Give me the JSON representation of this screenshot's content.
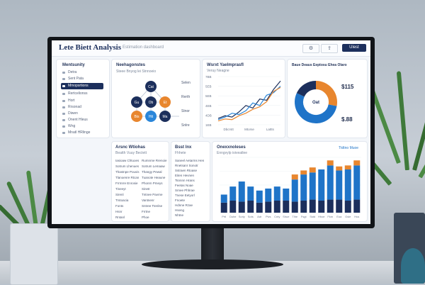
{
  "app": {
    "title": "Lete Biett Analysis",
    "subtitle": "Estimation dashboard"
  },
  "topbar": {
    "icon_buttons": [
      "⚙",
      "⇪"
    ],
    "action_label": "Ulest"
  },
  "sidebar": {
    "header": "Mentsunity",
    "items": [
      {
        "label": "Detra"
      },
      {
        "label": "Sent Pata"
      },
      {
        "label": "Mmopsrtions",
        "active": true
      },
      {
        "label": "Rertcelionss"
      },
      {
        "label": "Hort"
      },
      {
        "label": "Rrsonad"
      },
      {
        "label": "Diwen"
      },
      {
        "label": "Onent Hleus"
      },
      {
        "label": "Wng"
      },
      {
        "label": "Mnatl HRlinge"
      }
    ]
  },
  "network_card": {
    "title": "Neehagonstes",
    "subtitle": "Steee Bnyog lei Stnnoeio",
    "side_labels": [
      "Selen",
      "Rerth",
      "Stnor",
      "Snlre"
    ],
    "nodes": [
      {
        "label": "Cat",
        "color": "#1c2f5c"
      },
      {
        "label": "Gu",
        "color": "#1c2f5c"
      },
      {
        "label": "Ob",
        "color": "#1c2f5c"
      },
      {
        "label": "Et",
        "color": "#e8862e"
      },
      {
        "label": "Bis",
        "color": "#e8862e"
      },
      {
        "label": "Hit",
        "color": "#2a86d9"
      },
      {
        "label": "Ma",
        "color": "#1c2f5c"
      }
    ]
  },
  "line_card": {
    "title": "Wsrxt Yaelmprasfl",
    "subtitle": "Veruy Neagne",
    "y_ticks": [
      "7BB",
      "5EB",
      "5EB",
      "4EB",
      "4DB",
      "1EB"
    ],
    "x_labels": [
      "Dbcrstt",
      "Mtorse",
      "Lattts"
    ]
  },
  "donut_card": {
    "title": "Baue Deaus Eeptosu Ehea Olaro",
    "center_label": "Oat",
    "value_1": "$115",
    "value_2": "$.88",
    "slices": [
      {
        "name": "Orange",
        "value": 0.28,
        "color": "#e8862e"
      },
      {
        "name": "Blue",
        "value": 0.54,
        "color": "#1f74c8"
      },
      {
        "name": "Navy",
        "value": 0.18,
        "color": "#1c2f5c"
      }
    ]
  },
  "list_card": {
    "title": "Arsnc Wtiohas",
    "subtitle": "Beatth Vuuy Bectett",
    "col1": [
      "Iasioaw Chtuoes",
      "Sotrum Lhenues",
      "Thastnpe Pouvis",
      "Tlanoenre Rtcan",
      "Frrmrre Enrosie",
      "Tineeyt",
      "Sirenl",
      "Trstoacia",
      "Fonts",
      "Hsnr",
      "Rntanl"
    ],
    "col2": [
      "Rumnrne Rrenoie",
      "Sotrum Lemaaw",
      "Thangy Pewal",
      "Tuanote Heaune",
      "Phonrn Pmeys",
      "Sinetr",
      "Tntnee Pavrne",
      "Vantnenr",
      "Sntree Ttenlse",
      "Frrtne",
      "Phoe"
    ]
  },
  "notes_card": {
    "title": "Bsst lnx",
    "subtitle": "Fhhete",
    "lines": [
      "Saneel Aetarms Hen",
      "Rnetsanr Sonotr",
      "Sstraen Rtoase",
      "Eiten Hevnen",
      "Tsnnnn Hrans",
      "Feetas Noae",
      "Srnee Phhrae",
      "Tnese Eetyorl",
      "Fnoete",
      "Hdnne Rzae",
      "Hseng",
      "Nhtne"
    ]
  },
  "bar_card": {
    "title": "Onexxnoleses",
    "subtitle": "Enngvylp ioiveatlee",
    "legend": "Ttdtno Muoe"
  },
  "chart_data": [
    {
      "type": "line",
      "title": "Wsrxt Yaelmprasfl",
      "x": [
        0,
        1,
        2,
        3,
        4,
        5,
        6,
        7,
        8,
        9
      ],
      "series": [
        {
          "values": [
            10,
            14,
            12,
            20,
            30,
            26,
            40,
            38,
            55,
            68
          ],
          "color": "#1c2f5c"
        },
        {
          "values": [
            8,
            12,
            18,
            16,
            22,
            34,
            30,
            46,
            50,
            60
          ],
          "color": "#2a86d9"
        },
        {
          "values": [
            6,
            9,
            8,
            14,
            18,
            24,
            28,
            36,
            52,
            58
          ],
          "color": "#e8862e"
        }
      ],
      "ylim": [
        0,
        75
      ]
    },
    {
      "type": "bar",
      "title": "Onexxnoleses",
      "categories": [
        "Prtl",
        "Duhe",
        "Soriy",
        "Sots",
        "Adr",
        "Pivs",
        "Cnty",
        "Shue",
        "Tlhe",
        "Fsgt",
        "Sstd",
        "Hhoe",
        "Fkm",
        "Eoa",
        "Gsle",
        "Hus"
      ],
      "series": [
        {
          "name": "base",
          "values": [
            10,
            12,
            11,
            12,
            10,
            11,
            12,
            12,
            11,
            12,
            13,
            12,
            13,
            13,
            12,
            13
          ],
          "color": "#1c2f5c"
        },
        {
          "name": "mid",
          "values": [
            8,
            14,
            20,
            14,
            12,
            13,
            14,
            12,
            22,
            26,
            27,
            31,
            34,
            29,
            31,
            34
          ],
          "color": "#1f74c8"
        },
        {
          "name": "top",
          "values": [
            0,
            0,
            0,
            0,
            0,
            0,
            0,
            0,
            5,
            4,
            5,
            0,
            5,
            4,
            4,
            5
          ],
          "color": "#e8862e"
        }
      ],
      "ylim": [
        0,
        55
      ]
    }
  ]
}
